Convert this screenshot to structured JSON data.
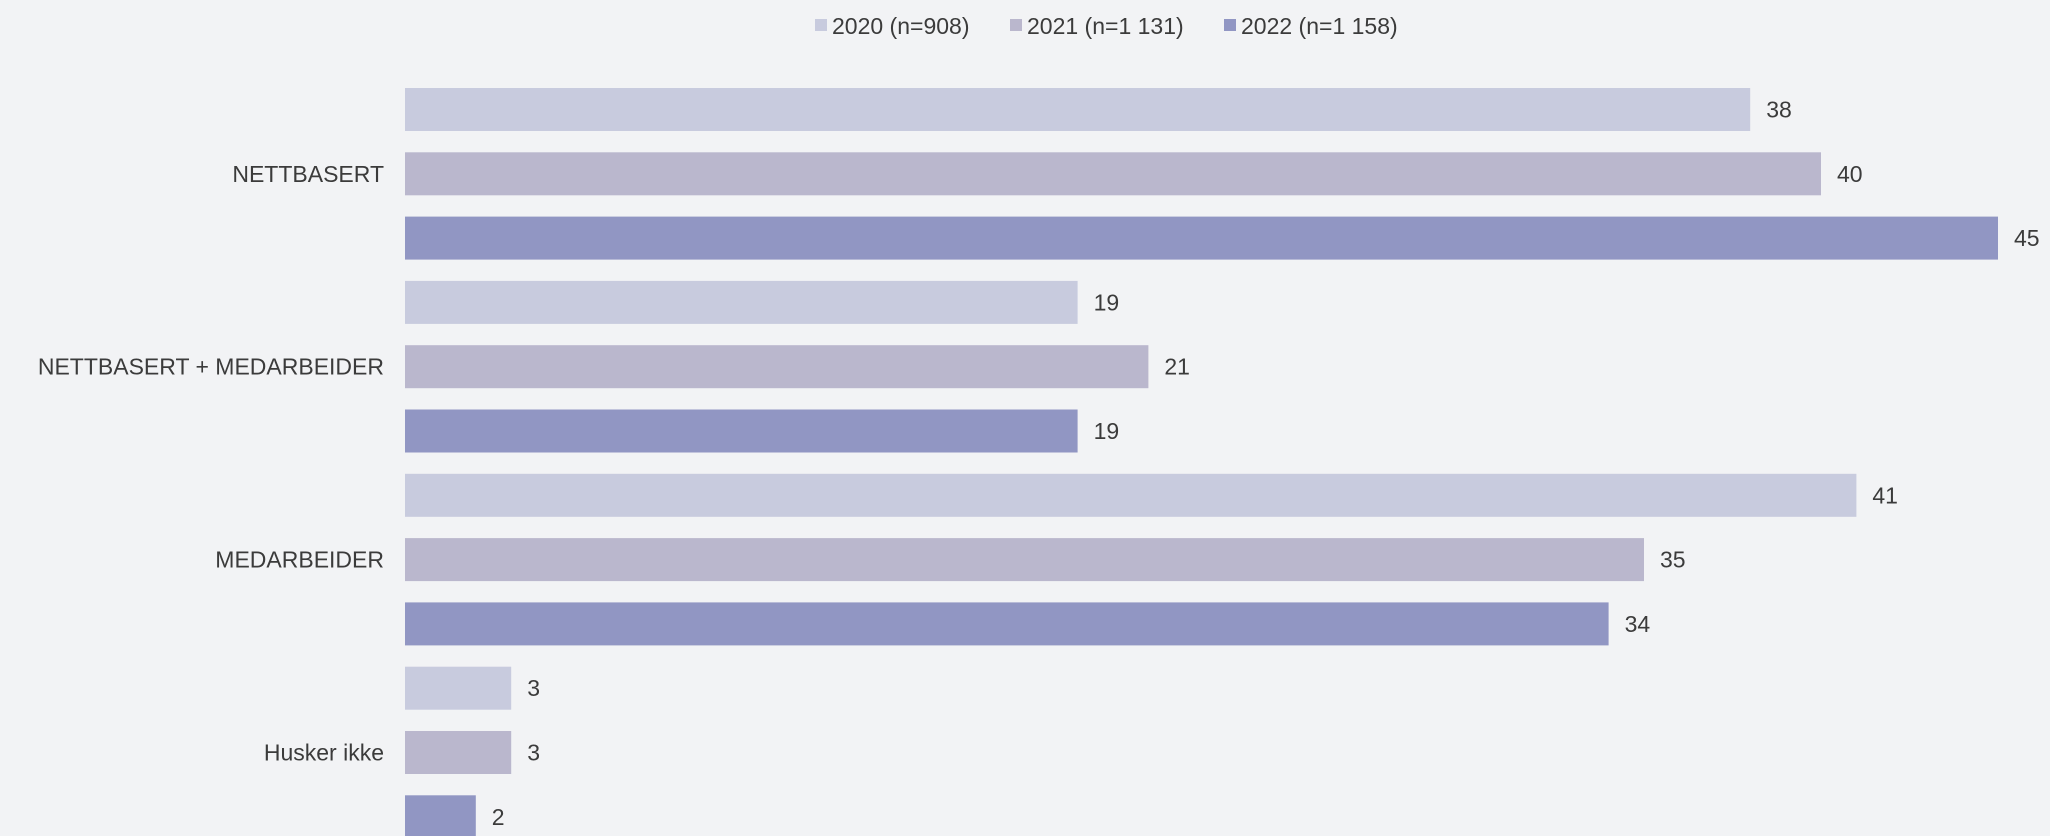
{
  "chart_data": {
    "type": "bar",
    "orientation": "horizontal",
    "categories": [
      "NETTBASERT",
      "NETTBASERT + MEDARBEIDER",
      "MEDARBEIDER",
      "Husker ikke"
    ],
    "series": [
      {
        "name": "2020 (n=908)",
        "color": "#c8cbde",
        "values": [
          38,
          19,
          41,
          3
        ]
      },
      {
        "name": "2021 (n=1 131)",
        "color": "#bab7cd",
        "values": [
          40,
          21,
          35,
          3
        ]
      },
      {
        "name": "2022 (n=1 158)",
        "color": "#9196c3",
        "values": [
          45,
          19,
          34,
          2
        ]
      }
    ],
    "xlim": [
      0,
      45
    ],
    "grid": false,
    "legend_position": "top-center",
    "data_labels": true
  }
}
